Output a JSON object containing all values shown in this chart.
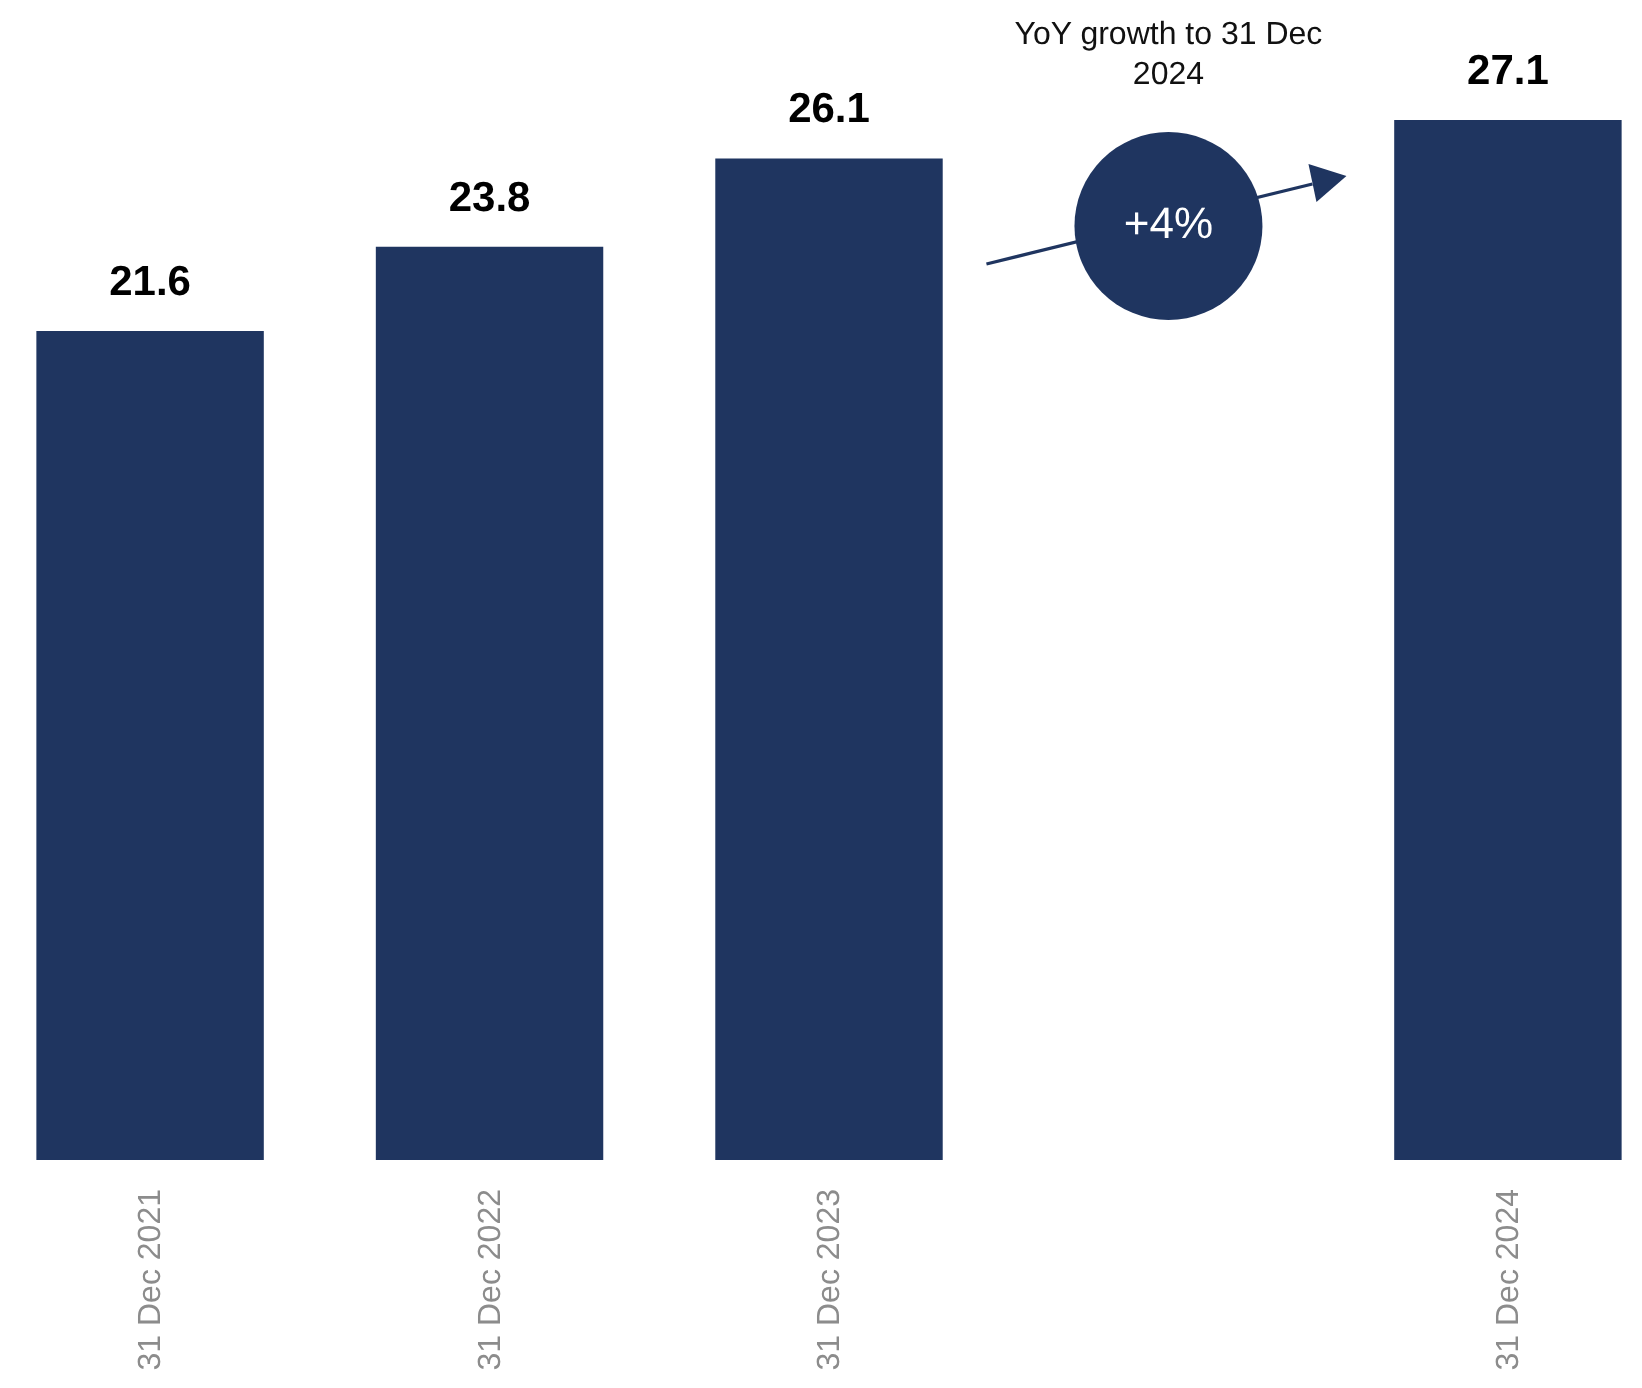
{
  "chart_data": {
    "type": "bar",
    "categories": [
      "31 Dec 2021",
      "31 Dec 2022",
      "31 Dec 2023",
      null,
      "31 Dec 2024"
    ],
    "values": [
      21.6,
      23.8,
      26.1,
      null,
      27.1
    ],
    "color": "#1f3560",
    "data_labels": true,
    "annotations": [
      "YoY growth to 31 Dec 2024",
      "+4%"
    ]
  }
}
